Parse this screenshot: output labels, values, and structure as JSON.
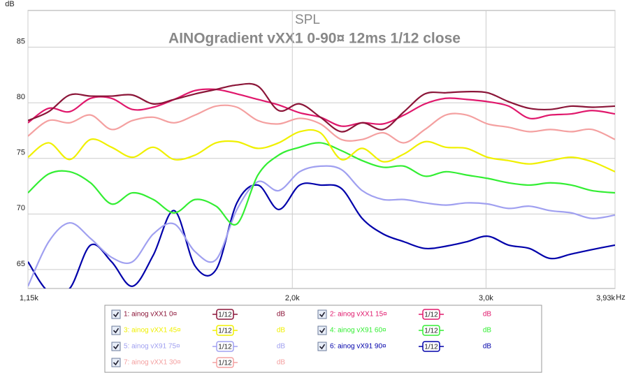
{
  "chart_data": {
    "type": "line",
    "title": "SPL",
    "subtitle": "AINOgradient vXX1 0-90¤ 12ms 1/12 close",
    "y_label": "dB",
    "x_label": "Hz",
    "log_x": true,
    "grid": true,
    "legend_unit": "dB",
    "smoothing_label": "1/12",
    "xlim": [
      1150,
      3930
    ],
    "ylim": [
      63.3,
      88.3
    ],
    "xticks": [
      {
        "value": 1150,
        "label": "1,15k"
      },
      {
        "value": 2000,
        "label": "2,0k"
      },
      {
        "value": 3000,
        "label": "3,0k"
      },
      {
        "value": 3930,
        "label": "3,93k"
      }
    ],
    "yticks": [
      65,
      70,
      75,
      80,
      85
    ],
    "x": [
      1150,
      1201,
      1255,
      1311,
      1370,
      1431,
      1495,
      1562,
      1632,
      1705,
      1781,
      1861,
      1944,
      2031,
      2121,
      2216,
      2315,
      2419,
      2527,
      2640,
      2758,
      2881,
      3010,
      3145,
      3285,
      3432,
      3586,
      3746,
      3930
    ],
    "series": [
      {
        "name": "1: ainog vXX1 0¤",
        "color": "#8b1538",
        "values": [
          78.4,
          79.2,
          80.7,
          80.6,
          80.6,
          80.7,
          79.9,
          80.3,
          80.8,
          81.2,
          81.6,
          81.5,
          79.3,
          79.9,
          78.7,
          77.4,
          78.2,
          77.6,
          79.2,
          80.8,
          80.9,
          81.0,
          80.9,
          80.1,
          79.5,
          79.4,
          79.7,
          79.6,
          79.7
        ]
      },
      {
        "name": "2: ainog vXX1 15¤",
        "color": "#e0186c",
        "values": [
          78.2,
          79.5,
          79.2,
          80.4,
          80.4,
          79.4,
          79.6,
          80.3,
          81.1,
          81.2,
          80.8,
          80.3,
          79.8,
          79.1,
          78.7,
          77.9,
          78.2,
          78.1,
          78.9,
          79.9,
          80.4,
          80.3,
          80.1,
          79.7,
          78.6,
          78.9,
          79.0,
          79.3,
          79.0
        ]
      },
      {
        "name": "3: ainog vXX1 45¤",
        "color": "#f0f000",
        "values": [
          75.1,
          76.4,
          74.9,
          76.7,
          76.0,
          75.1,
          76.0,
          74.9,
          75.3,
          76.4,
          76.5,
          75.9,
          76.4,
          77.4,
          77.3,
          74.9,
          75.9,
          74.7,
          75.4,
          76.5,
          76.0,
          75.9,
          75.1,
          74.8,
          74.5,
          74.8,
          75.1,
          74.7,
          73.8
        ]
      },
      {
        "name": "4: ainog vX91 60¤",
        "color": "#33ee33",
        "values": [
          71.9,
          73.6,
          73.8,
          72.8,
          70.9,
          71.9,
          71.3,
          70.1,
          71.3,
          70.7,
          69.1,
          73.5,
          75.3,
          76.0,
          76.4,
          75.7,
          74.8,
          74.2,
          74.3,
          73.4,
          73.8,
          73.5,
          73.2,
          72.8,
          72.6,
          72.8,
          72.6,
          72.1,
          71.9
        ]
      },
      {
        "name": "5: ainog vX91 75¤",
        "color": "#a0a0f0",
        "values": [
          63.5,
          67.5,
          69.2,
          67.8,
          66.1,
          65.7,
          68.2,
          69.1,
          66.6,
          65.9,
          70.4,
          72.9,
          72.1,
          73.8,
          74.3,
          74.0,
          72.1,
          71.3,
          71.3,
          71.0,
          70.8,
          71.0,
          70.9,
          70.5,
          70.7,
          70.3,
          70.1,
          69.6,
          69.9
        ]
      },
      {
        "name": "6: ainog vX91 90¤",
        "color": "#0000aa",
        "values": [
          65.7,
          63.0,
          63.3,
          67.2,
          65.7,
          63.5,
          66.3,
          70.3,
          65.3,
          65.0,
          71.0,
          72.6,
          70.4,
          72.6,
          72.6,
          72.3,
          69.6,
          68.2,
          67.5,
          66.9,
          67.1,
          67.5,
          68.0,
          67.2,
          66.9,
          66.0,
          66.4,
          66.8,
          67.2
        ]
      },
      {
        "name": "7: ainog vXX1 30¤",
        "color": "#f4a0a0",
        "values": [
          77.0,
          78.4,
          78.2,
          78.9,
          77.6,
          78.4,
          78.7,
          78.2,
          78.9,
          79.7,
          79.6,
          78.4,
          78.1,
          78.6,
          78.1,
          76.7,
          76.7,
          77.3,
          76.4,
          77.6,
          78.9,
          78.9,
          78.1,
          77.8,
          77.4,
          77.6,
          77.4,
          77.6,
          76.7
        ]
      }
    ]
  }
}
